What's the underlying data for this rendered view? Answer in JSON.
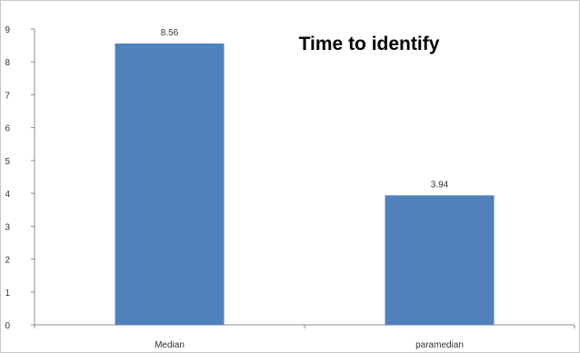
{
  "chart_data": {
    "type": "bar",
    "title": "Time to identify",
    "categories": [
      "Median",
      "paramedian"
    ],
    "values": [
      8.56,
      3.94
    ],
    "data_labels": [
      "8.56",
      "3.94"
    ],
    "xlabel": "",
    "ylabel": "",
    "ylim": [
      0,
      9
    ],
    "yticks": [
      "0",
      "1",
      "2",
      "3",
      "4",
      "5",
      "6",
      "7",
      "8",
      "9"
    ],
    "grid": false,
    "legend": "none",
    "bar_color": "#4F81BD"
  }
}
